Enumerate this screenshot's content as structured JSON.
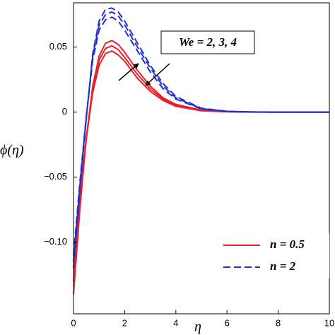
{
  "chart_data": {
    "type": "line",
    "ylabel": "ϕ(η)",
    "xlabel": "η",
    "annotation": "We = 2, 3, 4",
    "x": [
      0,
      0.25,
      0.5,
      0.75,
      1,
      1.25,
      1.5,
      1.75,
      2,
      2.5,
      3,
      3.5,
      4,
      5,
      6,
      7,
      8,
      9,
      10
    ],
    "series": [
      {
        "name": "n = 0.5",
        "color": "#e8212a",
        "dashed": false,
        "curves": [
          [
            -0.14,
            -0.075,
            -0.02,
            0.02,
            0.043,
            0.053,
            0.055,
            0.052,
            0.046,
            0.032,
            0.02,
            0.011,
            0.006,
            0.0015,
            0.0004,
            0.0001,
            0,
            0,
            0
          ],
          [
            -0.13,
            -0.07,
            -0.02,
            0.017,
            0.04,
            0.049,
            0.051,
            0.048,
            0.042,
            0.029,
            0.018,
            0.01,
            0.005,
            0.0013,
            0.0003,
            0.0001,
            0,
            0,
            0
          ],
          [
            -0.12,
            -0.065,
            -0.02,
            0.015,
            0.036,
            0.045,
            0.047,
            0.044,
            0.039,
            0.026,
            0.016,
            0.009,
            0.0045,
            0.001,
            0.0003,
            0,
            0,
            0,
            0
          ]
        ]
      },
      {
        "name": "n = 2",
        "color": "#1f2fd0",
        "dashed": true,
        "curves": [
          [
            -0.12,
            -0.06,
            -0.005,
            0.045,
            0.07,
            0.079,
            0.08,
            0.077,
            0.07,
            0.053,
            0.036,
            0.022,
            0.012,
            0.003,
            0.0007,
            0.0002,
            0,
            0,
            0
          ],
          [
            -0.115,
            -0.057,
            -0.004,
            0.043,
            0.067,
            0.075,
            0.077,
            0.074,
            0.067,
            0.05,
            0.034,
            0.02,
            0.011,
            0.0027,
            0.0006,
            0.0001,
            0,
            0,
            0
          ],
          [
            -0.11,
            -0.054,
            -0.003,
            0.04,
            0.063,
            0.071,
            0.073,
            0.07,
            0.063,
            0.047,
            0.031,
            0.018,
            0.01,
            0.0024,
            0.0005,
            0.0001,
            0,
            0,
            0
          ]
        ]
      }
    ],
    "xlim": [
      0,
      10
    ],
    "xticks": [
      0,
      2,
      4,
      6,
      8,
      10
    ],
    "ylim": [
      -0.155,
      0.084
    ],
    "yticks": [
      {
        "value": -0.1,
        "label": "−0.10"
      },
      {
        "value": -0.05,
        "label": "−0.05"
      },
      0,
      0.05
    ],
    "grid": false,
    "legend": "lower right"
  }
}
